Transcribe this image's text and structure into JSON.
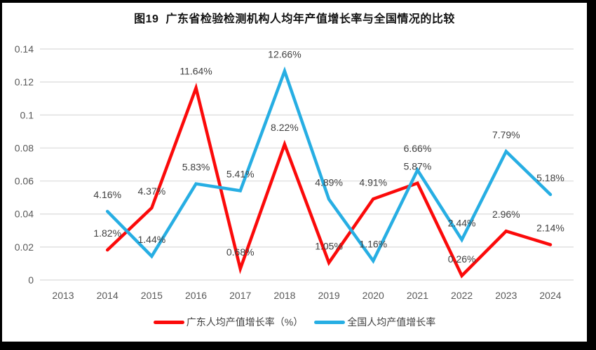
{
  "figure": {
    "frame_color": "#000000",
    "background_color": "#ffffff"
  },
  "chart_data": {
    "type": "line",
    "title": "图19  广东省检验检测机构人均年产值增长率与全国情况的比较",
    "categories": [
      "2013",
      "2014",
      "2015",
      "2016",
      "2017",
      "2018",
      "2019",
      "2020",
      "2021",
      "2022",
      "2023",
      "2024"
    ],
    "series": [
      {
        "name": "广东人均产值增长率（%）",
        "slug": "guangdong",
        "color": "#FB0A0A",
        "values_unit": "percent",
        "values": [
          null,
          1.82,
          4.37,
          11.64,
          0.68,
          8.22,
          1.05,
          4.91,
          5.87,
          0.26,
          2.96,
          2.14
        ],
        "labels": [
          "",
          "1.82%",
          "4.37%",
          "11.64%",
          "0.68%",
          "8.22%",
          "1.05%",
          "4.91%",
          "5.87%",
          "0.26%",
          "2.96%",
          "2.14%"
        ]
      },
      {
        "name": "全国人均产值增长率",
        "slug": "national",
        "color": "#27AEE3",
        "values_unit": "percent",
        "values": [
          null,
          4.16,
          1.44,
          5.83,
          5.41,
          12.66,
          4.89,
          1.16,
          6.66,
          2.44,
          7.79,
          5.18
        ],
        "labels": [
          "",
          "4.16%",
          "1.44%",
          "5.83%",
          "5.41%",
          "12.66%",
          "4.89%",
          "1.16%",
          "6.66%",
          "2.44%",
          "7.79%",
          "5.18%"
        ]
      }
    ],
    "yticks": [
      "0",
      "0.02",
      "0.04",
      "0.06",
      "0.08",
      "0.1",
      "0.12",
      "0.14"
    ],
    "ylim": [
      0,
      0.14
    ],
    "xlabel": "",
    "ylabel": "",
    "grid": "horizontal",
    "legend_position": "bottom-center",
    "gridline_color": "#DADADA",
    "axis_text_color": "#595959",
    "data_label_color": "#404040"
  }
}
